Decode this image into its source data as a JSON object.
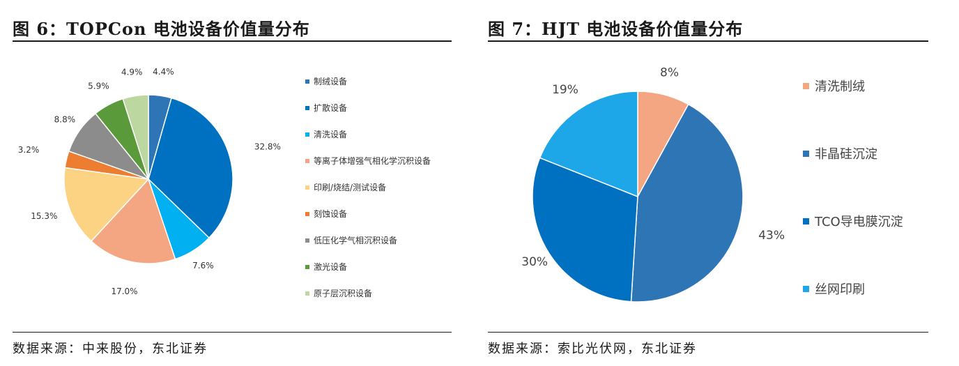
{
  "left": {
    "title": "图 6：TOPCon 电池设备价值量分布",
    "source": "数据来源：中来股份，东北证券"
  },
  "right": {
    "title": "图 7：HJT 电池设备价值量分布",
    "source": "数据来源：索比光伏网，东北证券"
  },
  "chart_data": [
    {
      "type": "pie",
      "legend_position": "right",
      "categories": [
        "制绒设备",
        "扩散设备",
        "清洗设备",
        "等离子体增强气相化学沉积设备",
        "印刷/烧结/测试设备",
        "刻蚀设备",
        "低压化学气相沉积设备",
        "激光设备",
        "原子层沉积设备"
      ],
      "values": [
        4.4,
        32.8,
        7.6,
        17.0,
        15.3,
        3.2,
        8.8,
        5.9,
        4.9
      ],
      "value_labels": [
        "4.4%",
        "32.8%",
        "7.6%",
        "17.0%",
        "15.3%",
        "3.2%",
        "8.8%",
        "5.9%",
        "4.9%"
      ],
      "colors": [
        "#2e75b6",
        "#0070c0",
        "#00b0f0",
        "#f4a582",
        "#fcd283",
        "#ed7d31",
        "#8c8c8c",
        "#5a9a3a",
        "#bdd7a0"
      ]
    },
    {
      "type": "pie",
      "legend_position": "right",
      "categories": [
        "清洗制绒",
        "非晶硅沉淀",
        "TCO导电膜沉淀",
        "丝网印刷"
      ],
      "values": [
        8,
        43,
        30,
        19
      ],
      "value_labels": [
        "8%",
        "43%",
        "30%",
        "19%"
      ],
      "colors": [
        "#f4a582",
        "#2e75b6",
        "#0070c0",
        "#1ea7e8"
      ]
    }
  ]
}
